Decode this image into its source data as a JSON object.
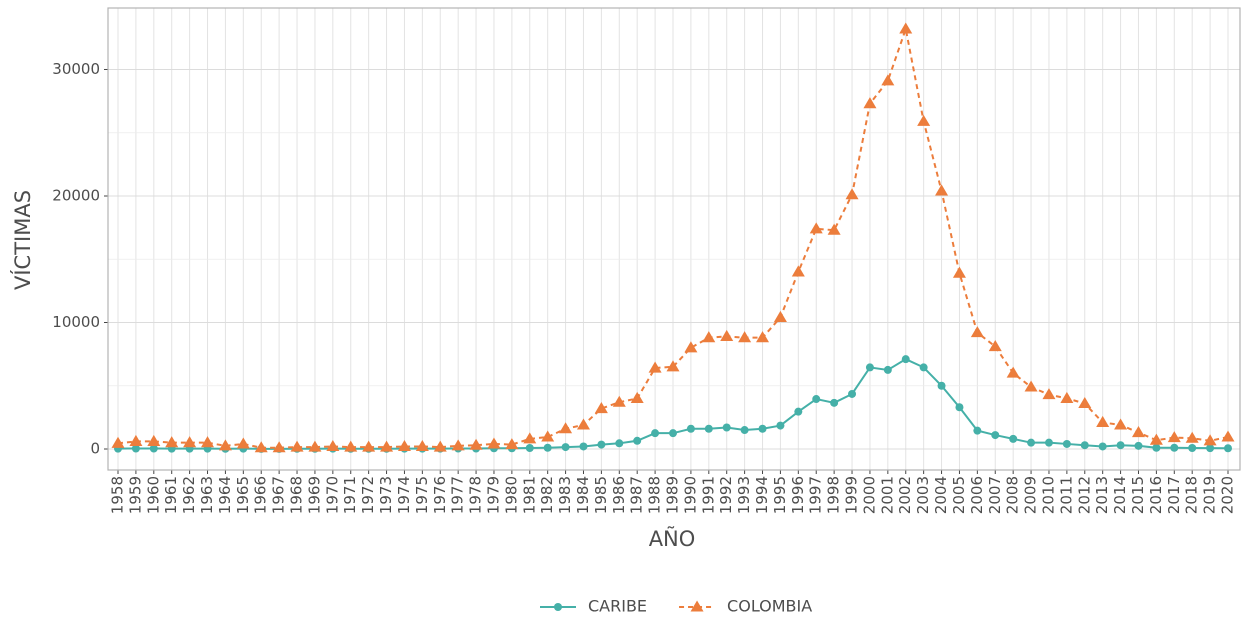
{
  "chart_data": {
    "type": "line",
    "xlabel": "AÑO",
    "ylabel": "VÍCTIMAS",
    "categories": [
      "1958",
      "1959",
      "1960",
      "1961",
      "1962",
      "1963",
      "1964",
      "1965",
      "1966",
      "1967",
      "1968",
      "1969",
      "1970",
      "1971",
      "1972",
      "1973",
      "1974",
      "1975",
      "1976",
      "1977",
      "1978",
      "1979",
      "1980",
      "1981",
      "1982",
      "1983",
      "1984",
      "1985",
      "1986",
      "1987",
      "1988",
      "1989",
      "1990",
      "1991",
      "1992",
      "1993",
      "1994",
      "1995",
      "1996",
      "1997",
      "1998",
      "1999",
      "2000",
      "2001",
      "2002",
      "2003",
      "2004",
      "2005",
      "2006",
      "2007",
      "2008",
      "2009",
      "2010",
      "2011",
      "2012",
      "2013",
      "2014",
      "2015",
      "2016",
      "2017",
      "2018",
      "2019",
      "2020"
    ],
    "series": [
      {
        "name": "CARIBE",
        "color": "#45b0a8",
        "marker": "circle",
        "linestyle": "solid",
        "values": [
          30,
          40,
          40,
          30,
          30,
          30,
          20,
          30,
          10,
          10,
          20,
          20,
          30,
          20,
          20,
          20,
          30,
          30,
          30,
          40,
          40,
          60,
          60,
          80,
          100,
          150,
          200,
          350,
          450,
          650,
          1250,
          1250,
          1600,
          1600,
          1700,
          1500,
          1600,
          1850,
          2950,
          3950,
          3650,
          4350,
          6450,
          6250,
          7100,
          6450,
          5000,
          3300,
          1450,
          1100,
          800,
          500,
          500,
          400,
          300,
          200,
          300,
          250,
          100,
          100,
          80,
          70,
          60
        ]
      },
      {
        "name": "COLOMBIA",
        "color": "#ec7d3c",
        "marker": "triangle",
        "linestyle": "dashed",
        "values": [
          450,
          600,
          600,
          500,
          500,
          500,
          250,
          400,
          100,
          100,
          150,
          150,
          200,
          150,
          150,
          150,
          200,
          200,
          150,
          250,
          300,
          400,
          350,
          800,
          950,
          1600,
          1900,
          3200,
          3700,
          4000,
          6400,
          6500,
          8000,
          8800,
          8900,
          8800,
          8800,
          10400,
          14000,
          17400,
          17300,
          20100,
          27300,
          29100,
          33200,
          25900,
          20400,
          13900,
          9200,
          8100,
          6000,
          4900,
          4300,
          4000,
          3600,
          2100,
          1900,
          1300,
          700,
          900,
          850,
          650,
          950
        ]
      }
    ],
    "ylim": [
      -1660,
      34860
    ],
    "yticks": [
      0,
      10000,
      20000,
      30000
    ],
    "grid": true,
    "legend": "bottom"
  }
}
